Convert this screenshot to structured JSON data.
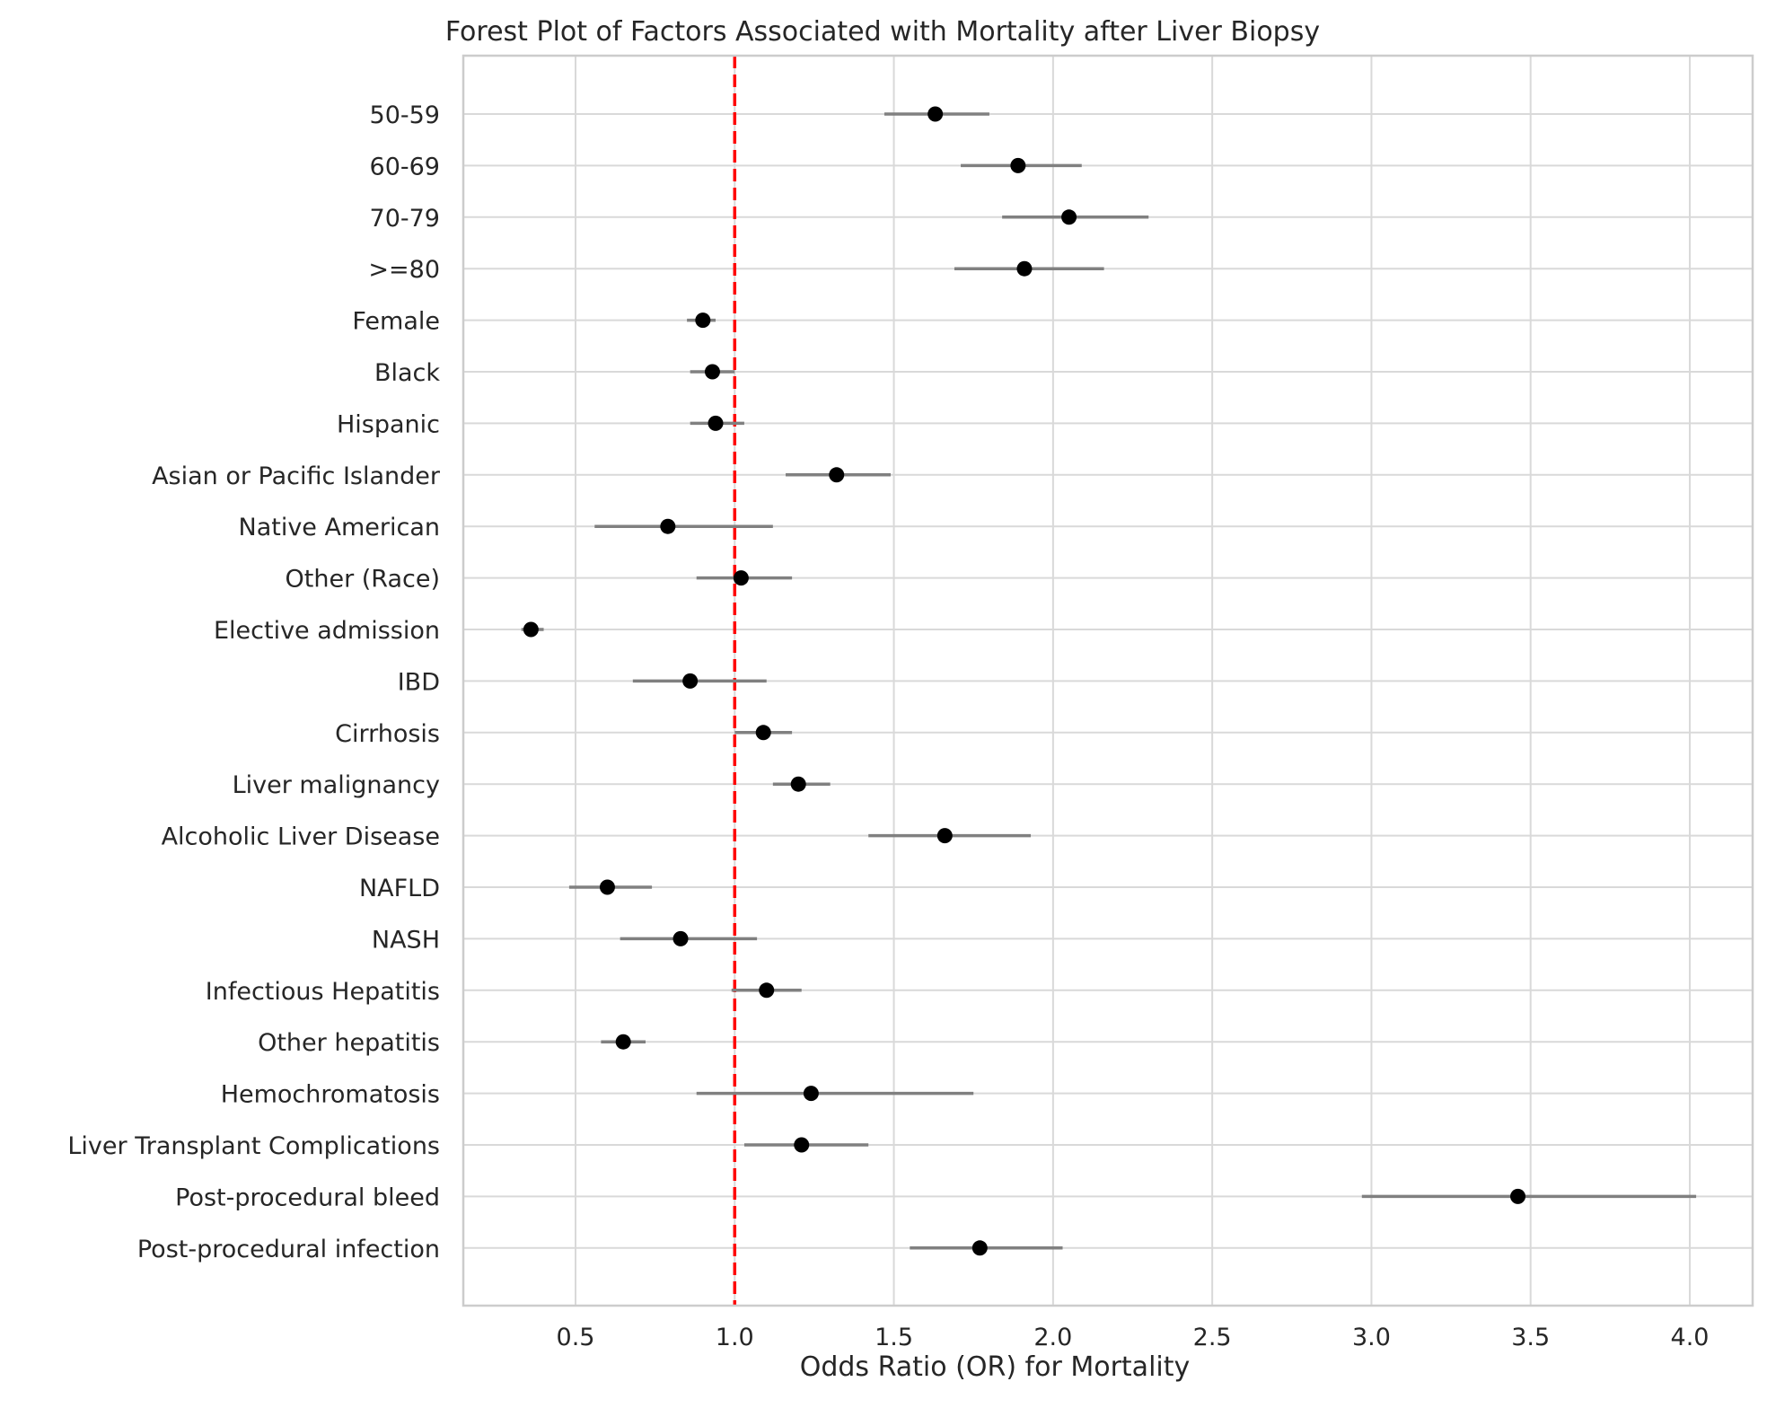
{
  "chart_data": {
    "type": "forest",
    "title": "Forest Plot of Factors Associated with Mortality after Liver Biopsy",
    "xlabel": "Odds Ratio (OR) for Mortality",
    "ylabel": "",
    "xlim": [
      0.15,
      4.2
    ],
    "xticks": [
      0.5,
      1.0,
      1.5,
      2.0,
      2.5,
      3.0,
      3.5,
      4.0
    ],
    "xtick_labels": [
      "0.5",
      "1.0",
      "1.5",
      "2.0",
      "2.5",
      "3.0",
      "3.5",
      "4.0"
    ],
    "reference_line": {
      "x": 1.0,
      "color": "#ff0000",
      "style": "dashed"
    },
    "grid": true,
    "point_color": "#000000",
    "ci_color": "#808080",
    "rows": [
      {
        "label": "50-59",
        "or": 1.63,
        "ci_low": 1.47,
        "ci_high": 1.8
      },
      {
        "label": "60-69",
        "or": 1.89,
        "ci_low": 1.71,
        "ci_high": 2.09
      },
      {
        "label": "70-79",
        "or": 2.05,
        "ci_low": 1.84,
        "ci_high": 2.3
      },
      {
        "label": ">=80",
        "or": 1.91,
        "ci_low": 1.69,
        "ci_high": 2.16
      },
      {
        "label": "Female",
        "or": 0.9,
        "ci_low": 0.85,
        "ci_high": 0.94
      },
      {
        "label": "Black",
        "or": 0.93,
        "ci_low": 0.86,
        "ci_high": 1.0
      },
      {
        "label": "Hispanic",
        "or": 0.94,
        "ci_low": 0.86,
        "ci_high": 1.03
      },
      {
        "label": "Asian or Pacific Islander",
        "or": 1.32,
        "ci_low": 1.16,
        "ci_high": 1.49
      },
      {
        "label": "Native American",
        "or": 0.79,
        "ci_low": 0.56,
        "ci_high": 1.12
      },
      {
        "label": "Other (Race)",
        "or": 1.02,
        "ci_low": 0.88,
        "ci_high": 1.18
      },
      {
        "label": "Elective admission",
        "or": 0.36,
        "ci_low": 0.33,
        "ci_high": 0.4
      },
      {
        "label": "IBD",
        "or": 0.86,
        "ci_low": 0.68,
        "ci_high": 1.1
      },
      {
        "label": "Cirrhosis",
        "or": 1.09,
        "ci_low": 1.0,
        "ci_high": 1.18
      },
      {
        "label": "Liver malignancy",
        "or": 1.2,
        "ci_low": 1.12,
        "ci_high": 1.3
      },
      {
        "label": "Alcoholic Liver Disease",
        "or": 1.66,
        "ci_low": 1.42,
        "ci_high": 1.93
      },
      {
        "label": "NAFLD",
        "or": 0.6,
        "ci_low": 0.48,
        "ci_high": 0.74
      },
      {
        "label": "NASH",
        "or": 0.83,
        "ci_low": 0.64,
        "ci_high": 1.07
      },
      {
        "label": "Infectious Hepatitis",
        "or": 1.1,
        "ci_low": 0.99,
        "ci_high": 1.21
      },
      {
        "label": "Other hepatitis",
        "or": 0.65,
        "ci_low": 0.58,
        "ci_high": 0.72
      },
      {
        "label": "Hemochromatosis",
        "or": 1.24,
        "ci_low": 0.88,
        "ci_high": 1.75
      },
      {
        "label": "Liver Transplant Complications",
        "or": 1.21,
        "ci_low": 1.03,
        "ci_high": 1.42
      },
      {
        "label": "Post-procedural bleed",
        "or": 3.46,
        "ci_low": 2.97,
        "ci_high": 4.02
      },
      {
        "label": "Post-procedural infection",
        "or": 1.77,
        "ci_low": 1.55,
        "ci_high": 2.03
      }
    ]
  }
}
